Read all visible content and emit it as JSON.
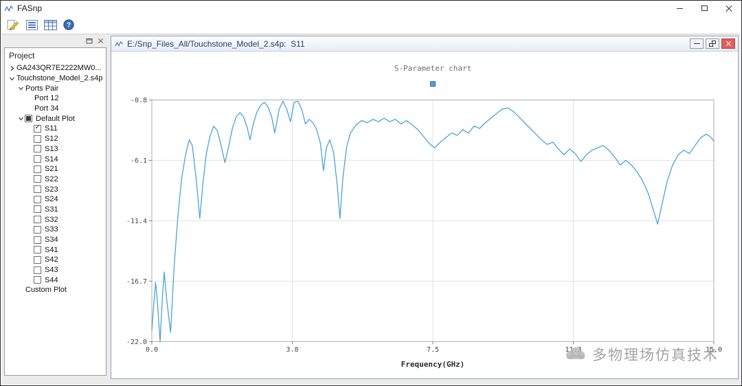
{
  "window": {
    "title": "FASnp"
  },
  "toolbar": {
    "icons": [
      "edit-icon",
      "plot-list-icon",
      "table-icon",
      "help-icon"
    ],
    "help_glyph": "?"
  },
  "dock": {
    "buttons": [
      "undock-icon",
      "close-icon"
    ]
  },
  "project_panel": {
    "title": "Project",
    "tree": [
      {
        "label": "GA243QR7E2222MW0...",
        "indent": 0,
        "chevron": "right",
        "checkbox": null
      },
      {
        "label": "Touchstone_Model_2.s4p",
        "indent": 0,
        "chevron": "down",
        "checkbox": null
      },
      {
        "label": "Ports Pair",
        "indent": 1,
        "chevron": "down",
        "checkbox": null
      },
      {
        "label": "Port 12",
        "indent": 2,
        "chevron": null,
        "checkbox": null
      },
      {
        "label": "Port 34",
        "indent": 2,
        "chevron": null,
        "checkbox": null
      },
      {
        "label": "Default Plot",
        "indent": 1,
        "chevron": "down",
        "checkbox": "partial"
      },
      {
        "label": "S11",
        "indent": 2,
        "chevron": null,
        "checkbox": "checked"
      },
      {
        "label": "S12",
        "indent": 2,
        "chevron": null,
        "checkbox": "unchecked"
      },
      {
        "label": "S13",
        "indent": 2,
        "chevron": null,
        "checkbox": "unchecked"
      },
      {
        "label": "S14",
        "indent": 2,
        "chevron": null,
        "checkbox": "unchecked"
      },
      {
        "label": "S21",
        "indent": 2,
        "chevron": null,
        "checkbox": "unchecked"
      },
      {
        "label": "S22",
        "indent": 2,
        "chevron": null,
        "checkbox": "unchecked"
      },
      {
        "label": "S23",
        "indent": 2,
        "chevron": null,
        "checkbox": "unchecked"
      },
      {
        "label": "S24",
        "indent": 2,
        "chevron": null,
        "checkbox": "unchecked"
      },
      {
        "label": "S31",
        "indent": 2,
        "chevron": null,
        "checkbox": "unchecked"
      },
      {
        "label": "S32",
        "indent": 2,
        "chevron": null,
        "checkbox": "unchecked"
      },
      {
        "label": "S33",
        "indent": 2,
        "chevron": null,
        "checkbox": "unchecked"
      },
      {
        "label": "S34",
        "indent": 2,
        "chevron": null,
        "checkbox": "unchecked"
      },
      {
        "label": "S41",
        "indent": 2,
        "chevron": null,
        "checkbox": "unchecked"
      },
      {
        "label": "S42",
        "indent": 2,
        "chevron": null,
        "checkbox": "unchecked"
      },
      {
        "label": "S43",
        "indent": 2,
        "chevron": null,
        "checkbox": "unchecked"
      },
      {
        "label": "S44",
        "indent": 2,
        "chevron": null,
        "checkbox": "unchecked"
      },
      {
        "label": "Custom Plot",
        "indent": 1,
        "chevron": null,
        "checkbox": null
      }
    ]
  },
  "plot_window": {
    "title": "E:/Snp_Files_All/Touchstone_Model_2.s4p:  S11"
  },
  "chart_data": {
    "type": "line",
    "title": "S-Parameter chart",
    "xlabel": "Frequency(GHz)",
    "ylabel": "",
    "xlim": [
      0,
      15
    ],
    "ylim": [
      -22.0,
      -0.8
    ],
    "grid": true,
    "legend": {
      "position": "top-center",
      "entries": [
        {
          "series": "S11",
          "marker": "square"
        }
      ]
    },
    "xticks": {
      "positions": [
        0,
        3.75,
        7.5,
        11.25,
        15
      ],
      "labels": [
        "0.0",
        "3.8",
        "7.5",
        "11.3",
        "15.0"
      ]
    },
    "yticks": {
      "positions": [
        -0.8,
        -6.1,
        -11.4,
        -16.7,
        -22.0
      ],
      "labels": [
        "-0.8",
        "-6.1",
        "-11.4",
        "-16.7",
        "-22.0"
      ]
    },
    "series": [
      {
        "name": "S11",
        "color": "#4aa3d8",
        "x": [
          0,
          0.05,
          0.1,
          0.15,
          0.22,
          0.28,
          0.33,
          0.4,
          0.5,
          0.6,
          0.7,
          0.8,
          0.9,
          1,
          1.08,
          1.18,
          1.28,
          1.36,
          1.45,
          1.55,
          1.65,
          1.75,
          1.85,
          1.95,
          2.05,
          2.15,
          2.25,
          2.35,
          2.45,
          2.55,
          2.62,
          2.7,
          2.8,
          2.9,
          3,
          3.1,
          3.2,
          3.28,
          3.4,
          3.5,
          3.6,
          3.7,
          3.8,
          3.9,
          4,
          4.1,
          4.2,
          4.3,
          4.4,
          4.5,
          4.58,
          4.66,
          4.75,
          4.85,
          4.95,
          5.02,
          5.1,
          5.2,
          5.3,
          5.45,
          5.6,
          5.75,
          5.9,
          6.05,
          6.2,
          6.35,
          6.5,
          6.65,
          6.8,
          6.95,
          7.1,
          7.25,
          7.4,
          7.55,
          7.7,
          7.85,
          8,
          8.15,
          8.3,
          8.45,
          8.6,
          8.75,
          8.9,
          9.05,
          9.2,
          9.35,
          9.5,
          9.65,
          9.8,
          9.95,
          10.1,
          10.25,
          10.4,
          10.55,
          10.7,
          10.85,
          11,
          11.15,
          11.3,
          11.45,
          11.6,
          11.75,
          11.9,
          12.05,
          12.2,
          12.35,
          12.5,
          12.65,
          12.8,
          12.95,
          13.1,
          13.25,
          13.4,
          13.5,
          13.6,
          13.75,
          13.9,
          14.05,
          14.2,
          14.35,
          14.5,
          14.65,
          14.8,
          14.9,
          15
        ],
        "y": [
          -21,
          -18.8,
          -16.8,
          -18.6,
          -22,
          -18.2,
          -15.9,
          -18.4,
          -21.2,
          -15.2,
          -10.8,
          -7.6,
          -5.6,
          -4.3,
          -4.8,
          -7.6,
          -11.2,
          -8.2,
          -5.6,
          -4,
          -3.1,
          -3.5,
          -4.8,
          -6.3,
          -4.9,
          -3.3,
          -2.3,
          -1.9,
          -2.3,
          -3.3,
          -4.3,
          -3,
          -1.9,
          -1.3,
          -1,
          -1.4,
          -2.3,
          -3.7,
          -1.6,
          -0.9,
          -1.6,
          -2.7,
          -1,
          -0.9,
          -1.6,
          -2.9,
          -2.5,
          -2.8,
          -3.4,
          -4.6,
          -7,
          -5,
          -4.3,
          -5.4,
          -8.3,
          -11.2,
          -7.6,
          -4.9,
          -3.7,
          -3,
          -2.6,
          -2.8,
          -2.5,
          -2.7,
          -2.4,
          -2.7,
          -2.5,
          -2.9,
          -2.6,
          -3,
          -3.4,
          -4,
          -4.6,
          -5,
          -4.5,
          -4.1,
          -3.7,
          -3.9,
          -3.4,
          -3.7,
          -3.1,
          -3.3,
          -2.8,
          -2.4,
          -2,
          -1.6,
          -1.5,
          -1.8,
          -2.3,
          -2.8,
          -3.3,
          -3.8,
          -4.3,
          -4.7,
          -4.5,
          -5.1,
          -5.6,
          -5.1,
          -5.5,
          -6.2,
          -5.6,
          -5.2,
          -5,
          -4.8,
          -5.2,
          -5.8,
          -6.5,
          -6.1,
          -6.5,
          -7.1,
          -7.9,
          -9,
          -10.6,
          -11.7,
          -10.2,
          -8,
          -6.5,
          -5.6,
          -5.2,
          -5.5,
          -4.8,
          -4.1,
          -3.8,
          -4,
          -4.4
        ]
      }
    ]
  },
  "watermark": {
    "text": "多物理场仿真技术"
  }
}
